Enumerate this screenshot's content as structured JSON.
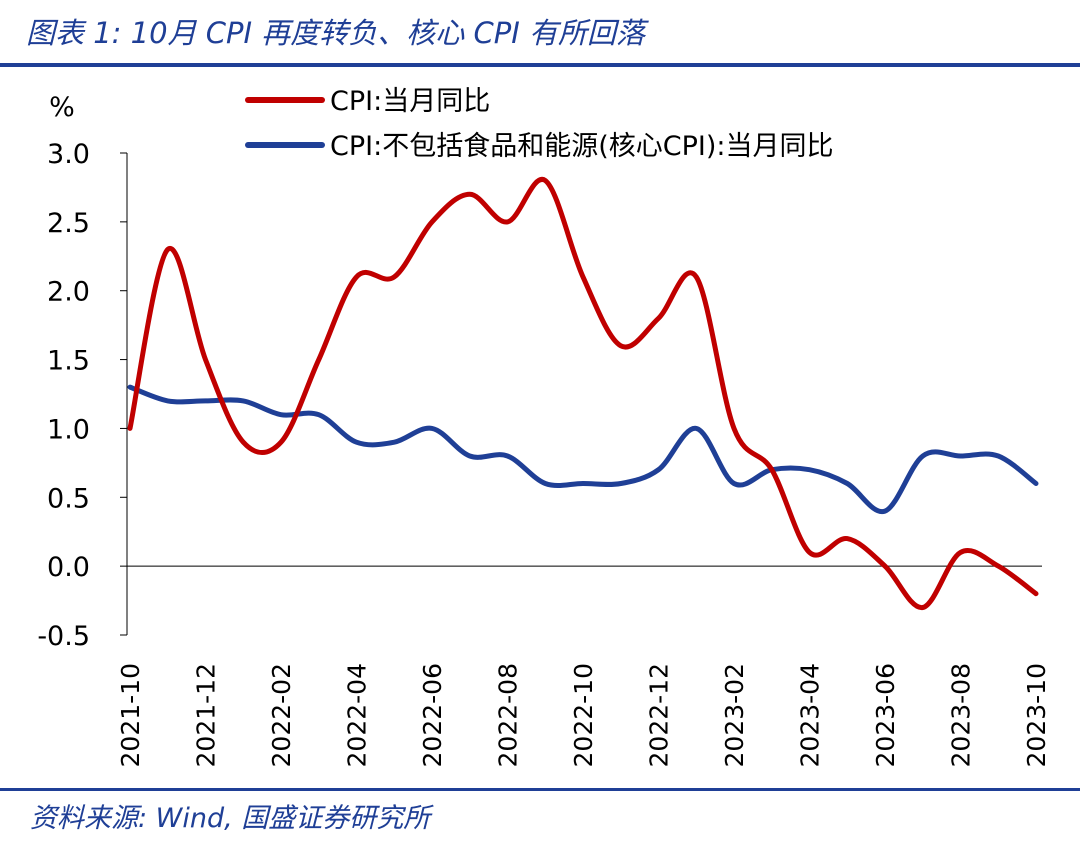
{
  "title": "图表 1: 10月 CPI 再度转负、核心 CPI 有所回落",
  "source": "资料来源: Wind, 国盛证券研究所",
  "colors": {
    "brand": "#1f3f96",
    "series_cpi": "#c00000",
    "series_core": "#1f3f96"
  },
  "chart_data": {
    "type": "line",
    "ylabel": "%",
    "ylim": [
      -0.5,
      3.0
    ],
    "yticks": [
      "3.0",
      "2.5",
      "2.0",
      "1.5",
      "1.0",
      "0.5",
      "0.0",
      "-0.5"
    ],
    "x": [
      "2021-10",
      "2021-11",
      "2021-12",
      "2022-01",
      "2022-02",
      "2022-03",
      "2022-04",
      "2022-05",
      "2022-06",
      "2022-07",
      "2022-08",
      "2022-09",
      "2022-10",
      "2022-11",
      "2022-12",
      "2023-01",
      "2023-02",
      "2023-03",
      "2023-04",
      "2023-05",
      "2023-06",
      "2023-07",
      "2023-08",
      "2023-09",
      "2023-10"
    ],
    "xticks": [
      "2021-10",
      "2021-12",
      "2022-02",
      "2022-04",
      "2022-06",
      "2022-08",
      "2022-10",
      "2022-12",
      "2023-02",
      "2023-04",
      "2023-06",
      "2023-08",
      "2023-10"
    ],
    "series": [
      {
        "name": "CPI:当月同比",
        "color": "#c00000",
        "values": [
          1.0,
          2.3,
          1.5,
          0.9,
          0.9,
          1.5,
          2.1,
          2.1,
          2.5,
          2.7,
          2.5,
          2.8,
          2.1,
          1.6,
          1.8,
          2.1,
          1.0,
          0.7,
          0.1,
          0.2,
          0.0,
          -0.3,
          0.1,
          0.0,
          -0.2
        ]
      },
      {
        "name": "CPI:不包括食品和能源(核心CPI):当月同比",
        "color": "#1f3f96",
        "values": [
          1.3,
          1.2,
          1.2,
          1.2,
          1.1,
          1.1,
          0.9,
          0.9,
          1.0,
          0.8,
          0.8,
          0.6,
          0.6,
          0.6,
          0.7,
          1.0,
          0.6,
          0.7,
          0.7,
          0.6,
          0.4,
          0.8,
          0.8,
          0.8,
          0.6
        ]
      }
    ],
    "grid": false,
    "legend_position": "top"
  }
}
